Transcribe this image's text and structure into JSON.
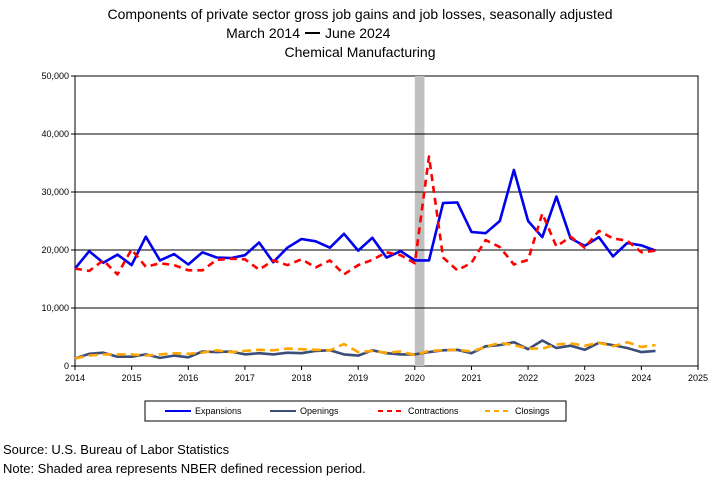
{
  "chart_data": {
    "type": "line",
    "title": "Components of private sector gross job gains and job losses, seasonally adjusted",
    "subtitle_start": "March 2014",
    "subtitle_end": "June 2024",
    "subtitle2": "Chemical Manufacturing",
    "xlim": [
      2014,
      2025
    ],
    "ylim": [
      0,
      50000
    ],
    "x_ticks": [
      "2014",
      "2015",
      "2016",
      "2017",
      "2018",
      "2019",
      "2020",
      "2021",
      "2022",
      "2023",
      "2024",
      "2025"
    ],
    "y_ticks": [
      "0",
      "10,000",
      "20,000",
      "30,000",
      "40,000",
      "50,000"
    ],
    "grid": "horizontal",
    "recession": [
      2020.0,
      2020.17
    ],
    "x": [
      2014.0,
      2014.25,
      2014.5,
      2014.75,
      2015.0,
      2015.25,
      2015.5,
      2015.75,
      2016.0,
      2016.25,
      2016.5,
      2016.75,
      2017.0,
      2017.25,
      2017.5,
      2017.75,
      2018.0,
      2018.25,
      2018.5,
      2018.75,
      2019.0,
      2019.25,
      2019.5,
      2019.75,
      2020.0,
      2020.25,
      2020.5,
      2020.75,
      2021.0,
      2021.25,
      2021.5,
      2021.75,
      2022.0,
      2022.25,
      2022.5,
      2022.75,
      2023.0,
      2023.25,
      2023.5,
      2023.75,
      2024.0,
      2024.25
    ],
    "series": [
      {
        "name": "Expansions",
        "color": "#0000ee",
        "dash": "solid",
        "width": 2.6,
        "values": [
          16800,
          19800,
          17800,
          19200,
          17400,
          22300,
          18200,
          19300,
          17500,
          19600,
          18700,
          18600,
          19100,
          21300,
          17900,
          20400,
          21900,
          21500,
          20400,
          22800,
          19900,
          22100,
          18700,
          19800,
          18200,
          18200,
          28100,
          28200,
          23100,
          22900,
          25000,
          33800,
          25000,
          22200,
          29200,
          22000,
          20700,
          22200,
          18900,
          21200,
          20800,
          19900
        ]
      },
      {
        "name": "Openings",
        "color": "#3b4e7a",
        "dash": "solid",
        "width": 2.6,
        "values": [
          1300,
          2100,
          2300,
          1600,
          1600,
          2000,
          1400,
          1800,
          1500,
          2500,
          2400,
          2500,
          2000,
          2200,
          2000,
          2300,
          2200,
          2600,
          2700,
          2000,
          1800,
          2700,
          2200,
          2000,
          2000,
          2400,
          2700,
          2800,
          2200,
          3400,
          3600,
          4100,
          2900,
          4400,
          3100,
          3500,
          2800,
          4000,
          3600,
          3100,
          2400,
          2600
        ]
      },
      {
        "name": "Contractions",
        "color": "#ff0000",
        "dash": "7 5",
        "width": 2.6,
        "values": [
          16800,
          16400,
          18200,
          15800,
          20100,
          17100,
          17700,
          17400,
          16500,
          16500,
          18300,
          18500,
          18400,
          16600,
          18200,
          17400,
          18400,
          17000,
          18200,
          15800,
          17400,
          18300,
          19600,
          19100,
          17700,
          36100,
          18700,
          16500,
          17800,
          21700,
          20500,
          17500,
          18300,
          26300,
          20600,
          22300,
          20400,
          23300,
          22000,
          21600,
          19600,
          19900
        ]
      },
      {
        "name": "Closings",
        "color": "#ffa500",
        "dash": "9 5",
        "width": 2.6,
        "values": [
          1300,
          1800,
          2000,
          2000,
          2000,
          1800,
          2000,
          2200,
          2100,
          2300,
          2700,
          2400,
          2600,
          2800,
          2700,
          3000,
          2900,
          2800,
          2700,
          3800,
          2400,
          2600,
          2300,
          2500,
          1900,
          2600,
          2700,
          2800,
          2500,
          3300,
          4000,
          3600,
          3000,
          3000,
          3700,
          3900,
          3500,
          4000,
          3400,
          4100,
          3300,
          3600
        ]
      }
    ]
  },
  "footer": {
    "source": "Source: U.S. Bureau of Labor Statistics",
    "note": "Note: Shaded area represents NBER defined recession period."
  }
}
